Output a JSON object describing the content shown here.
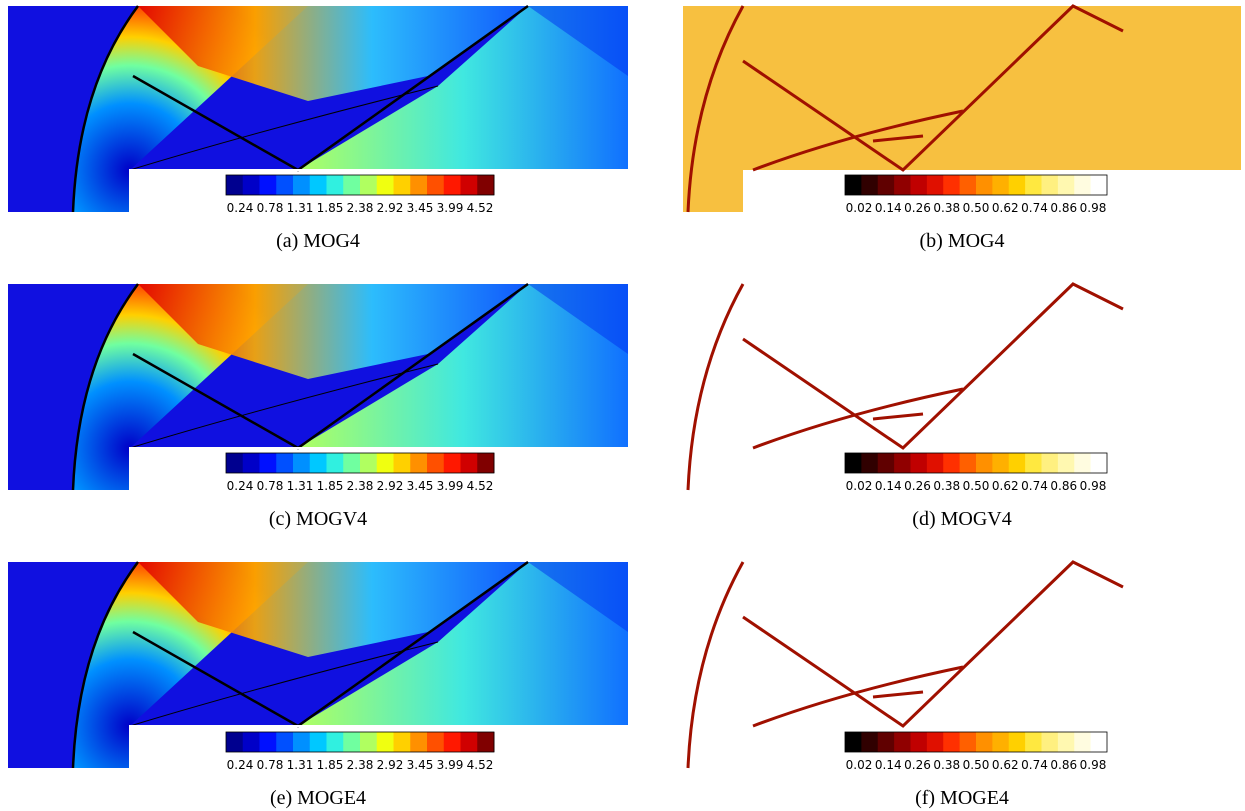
{
  "figure": {
    "colormaps": {
      "mach": [
        "#00008f",
        "#0000c8",
        "#0010ff",
        "#0050ff",
        "#0090ff",
        "#00c8ff",
        "#30f0e0",
        "#70ffa0",
        "#b0ff60",
        "#f0ff10",
        "#ffd000",
        "#ff9000",
        "#ff5000",
        "#ff1800",
        "#d00000",
        "#800000"
      ],
      "indicator": [
        "#000000",
        "#300000",
        "#600000",
        "#900000",
        "#c00000",
        "#e01000",
        "#ff3000",
        "#ff6000",
        "#ff9000",
        "#ffb000",
        "#ffd000",
        "#ffe840",
        "#fff080",
        "#fff8b0",
        "#fffce0",
        "#ffffff"
      ]
    },
    "panels": [
      {
        "kind": "mach",
        "caption": "(a) MOG4",
        "colorbar": {
          "colormap": "mach",
          "ticks": [
            "0.24",
            "0.78",
            "1.31",
            "1.85",
            "2.38",
            "2.92",
            "3.45",
            "3.99",
            "4.52"
          ]
        }
      },
      {
        "kind": "indicator",
        "background": "#f7c040",
        "caption": "(b) MOG4",
        "colorbar": {
          "colormap": "indicator",
          "ticks": [
            "0.02",
            "0.14",
            "0.26",
            "0.38",
            "0.50",
            "0.62",
            "0.74",
            "0.86",
            "0.98"
          ]
        }
      },
      {
        "kind": "mach",
        "caption": "(c) MOGV4",
        "colorbar": {
          "colormap": "mach",
          "ticks": [
            "0.24",
            "0.78",
            "1.31",
            "1.85",
            "2.38",
            "2.92",
            "3.45",
            "3.99",
            "4.52"
          ]
        }
      },
      {
        "kind": "indicator",
        "background": "#ffffff",
        "caption": "(d) MOGV4",
        "colorbar": {
          "colormap": "indicator",
          "ticks": [
            "0.02",
            "0.14",
            "0.26",
            "0.38",
            "0.50",
            "0.62",
            "0.74",
            "0.86",
            "0.98"
          ]
        }
      },
      {
        "kind": "mach",
        "caption": "(e) MOGE4",
        "colorbar": {
          "colormap": "mach",
          "ticks": [
            "0.24",
            "0.78",
            "1.31",
            "1.85",
            "2.38",
            "2.92",
            "3.45",
            "3.99",
            "4.52"
          ]
        }
      },
      {
        "kind": "indicator",
        "background": "#ffffff",
        "caption": "(f) MOGE4",
        "colorbar": {
          "colormap": "indicator",
          "ticks": [
            "0.02",
            "0.14",
            "0.26",
            "0.38",
            "0.50",
            "0.62",
            "0.74",
            "0.86",
            "0.98"
          ]
        }
      }
    ]
  }
}
